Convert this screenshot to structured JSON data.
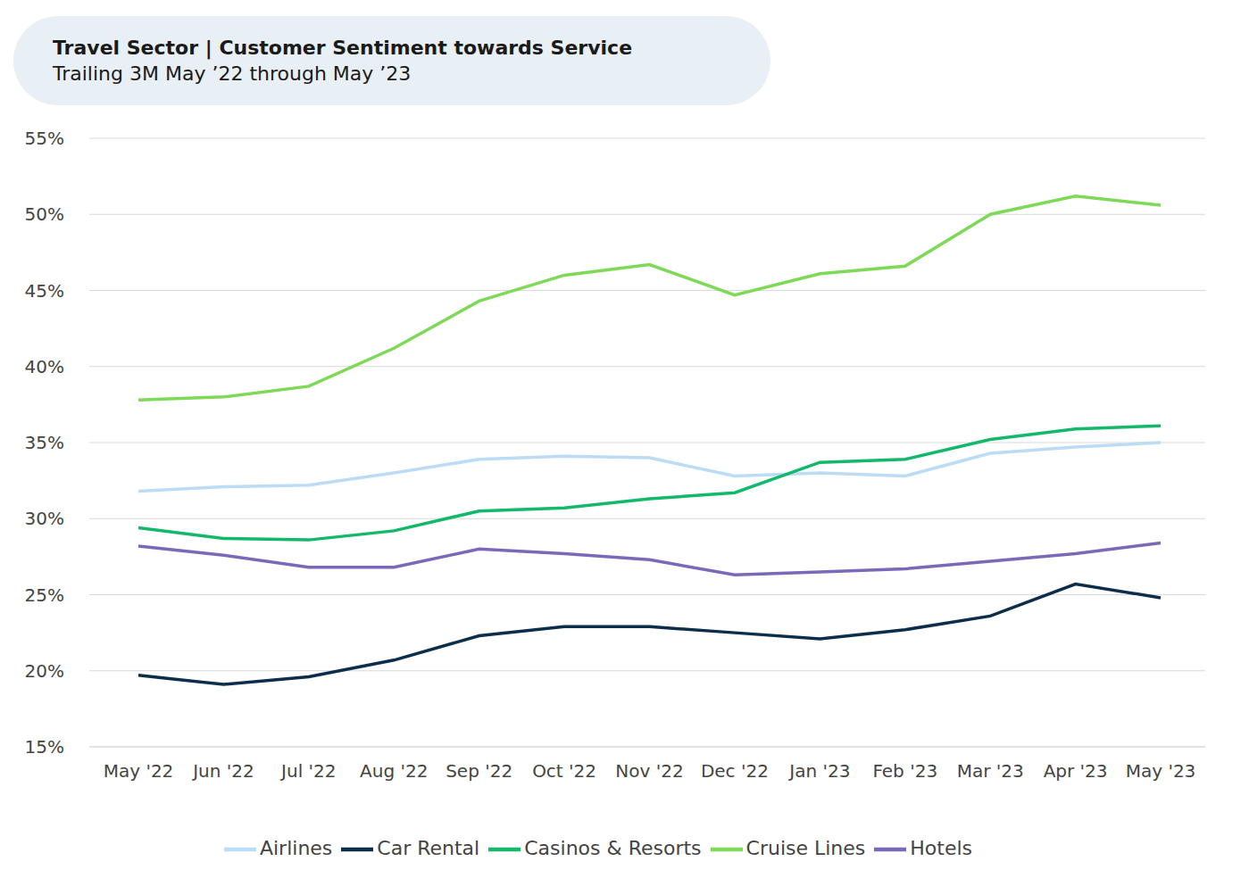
{
  "chart_data": {
    "type": "line",
    "title": "Travel Sector | Customer Sentiment towards Service",
    "subtitle": "Trailing 3M May ’22 through May ’23",
    "categories": [
      "May '22",
      "Jun '22",
      "Jul '22",
      "Aug '22",
      "Sep '22",
      "Oct '22",
      "Nov '22",
      "Dec '22",
      "Jan '23",
      "Feb '23",
      "Mar '23",
      "Apr '23",
      "May '23"
    ],
    "series": [
      {
        "name": "Airlines",
        "color": "#bcdcf5",
        "values": [
          31.8,
          32.1,
          32.2,
          33.0,
          33.9,
          34.1,
          34.0,
          32.8,
          33.0,
          32.8,
          34.3,
          34.7,
          35.0
        ]
      },
      {
        "name": "Car Rental",
        "color": "#0d2e4a",
        "values": [
          19.7,
          19.1,
          19.6,
          20.7,
          22.3,
          22.9,
          22.9,
          22.5,
          22.1,
          22.7,
          23.6,
          25.7,
          24.8
        ]
      },
      {
        "name": "Casinos & Resorts",
        "color": "#14b86a",
        "values": [
          29.4,
          28.7,
          28.6,
          29.2,
          30.5,
          30.7,
          31.3,
          31.7,
          33.7,
          33.9,
          35.2,
          35.9,
          36.1
        ]
      },
      {
        "name": "Cruise Lines",
        "color": "#7ed957",
        "values": [
          37.8,
          38.0,
          38.7,
          41.2,
          44.3,
          46.0,
          46.7,
          44.7,
          46.1,
          46.6,
          50.0,
          51.2,
          50.6
        ]
      },
      {
        "name": "Hotels",
        "color": "#7b68b8",
        "values": [
          28.2,
          27.6,
          26.8,
          26.8,
          28.0,
          27.7,
          27.3,
          26.3,
          26.5,
          26.7,
          27.2,
          27.7,
          28.4
        ]
      }
    ],
    "ylim": [
      15,
      55
    ],
    "yticks": [
      {
        "value": 15,
        "label": "15%"
      },
      {
        "value": 20,
        "label": "20%"
      },
      {
        "value": 25,
        "label": "25%"
      },
      {
        "value": 30,
        "label": "30%"
      },
      {
        "value": 35,
        "label": "35%"
      },
      {
        "value": 40,
        "label": "40%"
      },
      {
        "value": 45,
        "label": "45%"
      },
      {
        "value": 50,
        "label": "50%"
      },
      {
        "value": 55,
        "label": "55%"
      }
    ],
    "grid": true,
    "legend": "bottom"
  }
}
